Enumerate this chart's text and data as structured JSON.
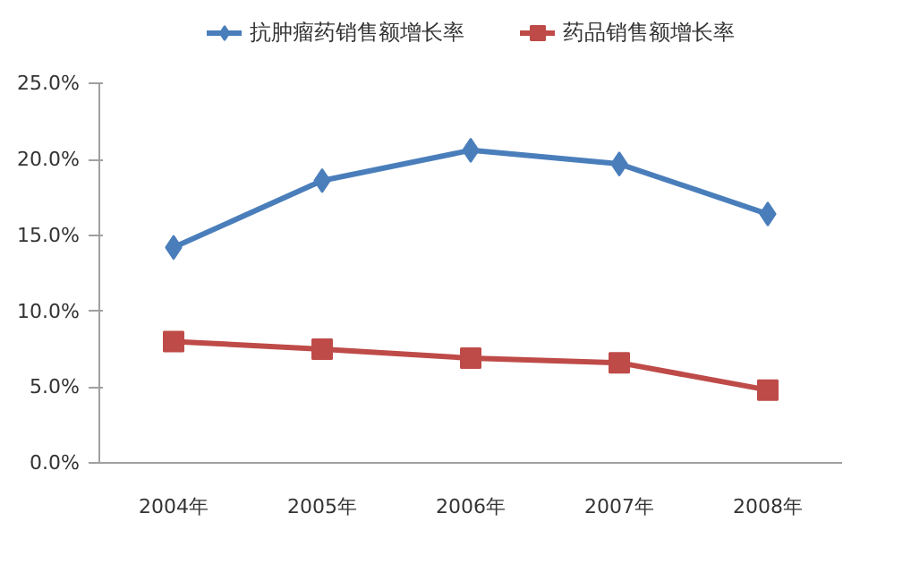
{
  "chart_data": {
    "type": "line",
    "categories": [
      "2004年",
      "2005年",
      "2006年",
      "2007年",
      "2008年"
    ],
    "series": [
      {
        "name": "抗肿瘤药销售额增长率",
        "color": "#4a7ebb",
        "marker": "diamond",
        "values": [
          14.2,
          18.6,
          20.6,
          19.7,
          16.4
        ]
      },
      {
        "name": "药品销售额增长率",
        "color": "#be4b48",
        "marker": "square",
        "values": [
          8.0,
          7.5,
          6.9,
          6.6,
          4.8
        ]
      }
    ],
    "ylim": [
      0,
      25
    ],
    "yticks": [
      {
        "value": 0,
        "label": "0.0%"
      },
      {
        "value": 5,
        "label": "5.0%"
      },
      {
        "value": 10,
        "label": "10.0%"
      },
      {
        "value": 15,
        "label": "15.0%"
      },
      {
        "value": 20,
        "label": "20.0%"
      },
      {
        "value": 25,
        "label": "25.0%"
      }
    ],
    "grid": false,
    "legend": "top",
    "line_style": "solid"
  }
}
